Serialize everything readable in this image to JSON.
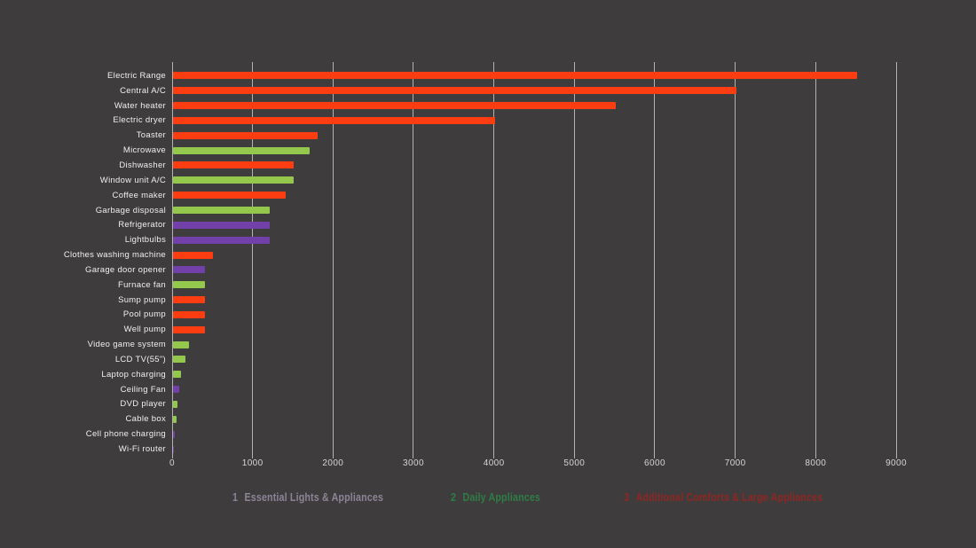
{
  "colors": {
    "background": "#3e3c3d",
    "gridline": "#c9c6c5",
    "tick_text": "#d7d4d3",
    "label_text": "#f1eeed"
  },
  "chart_data": {
    "type": "bar",
    "orientation": "horizontal",
    "title": "",
    "xlabel": "",
    "ylabel": "",
    "unit": "watts",
    "xlim": [
      0,
      9000
    ],
    "grid": true,
    "x_ticks": [
      0,
      1000,
      2000,
      3000,
      4000,
      5000,
      6000,
      7000,
      8000,
      9000
    ],
    "legend_position": "bottom",
    "legend": [
      {
        "key": "essential",
        "num": "1",
        "label": "Essential Lights & Appliances",
        "text_color": "#8c8496",
        "bar_color": "#7140a8"
      },
      {
        "key": "daily",
        "num": "2",
        "label": "Daily Appliances",
        "text_color": "#2e7d45",
        "bar_color": "#94c84d"
      },
      {
        "key": "additional",
        "num": "3",
        "label": "Additional Comforts & Large Appliances",
        "text_color": "#8e2723",
        "bar_color": "#fb3d11"
      }
    ],
    "bars": [
      {
        "label": "Electric Range",
        "value": 8500,
        "category": "additional"
      },
      {
        "label": "Central A/C",
        "value": 7000,
        "category": "additional"
      },
      {
        "label": "Water heater",
        "value": 5500,
        "category": "additional"
      },
      {
        "label": "Electric dryer",
        "value": 4000,
        "category": "additional"
      },
      {
        "label": "Toaster",
        "value": 1800,
        "category": "additional"
      },
      {
        "label": "Microwave",
        "value": 1700,
        "category": "daily"
      },
      {
        "label": "Dishwasher",
        "value": 1500,
        "category": "additional"
      },
      {
        "label": "Window unit A/C",
        "value": 1500,
        "category": "daily"
      },
      {
        "label": "Coffee maker",
        "value": 1400,
        "category": "additional"
      },
      {
        "label": "Garbage disposal",
        "value": 1200,
        "category": "daily"
      },
      {
        "label": "Refrigerator",
        "value": 1200,
        "category": "essential"
      },
      {
        "label": "Lightbulbs",
        "value": 1200,
        "category": "essential"
      },
      {
        "label": "Clothes washing machine",
        "value": 500,
        "category": "additional"
      },
      {
        "label": "Garage door opener",
        "value": 400,
        "category": "essential"
      },
      {
        "label": "Furnace fan",
        "value": 400,
        "category": "daily"
      },
      {
        "label": "Sump pump",
        "value": 400,
        "category": "additional"
      },
      {
        "label": "Pool pump",
        "value": 400,
        "category": "additional"
      },
      {
        "label": "Well pump",
        "value": 400,
        "category": "additional"
      },
      {
        "label": "Video game system",
        "value": 200,
        "category": "daily"
      },
      {
        "label": "LCD TV(55\")",
        "value": 150,
        "category": "daily"
      },
      {
        "label": "Laptop charging",
        "value": 100,
        "category": "daily"
      },
      {
        "label": "Ceiling Fan",
        "value": 75,
        "category": "essential"
      },
      {
        "label": "DVD player",
        "value": 60,
        "category": "daily"
      },
      {
        "label": "Cable box",
        "value": 40,
        "category": "daily"
      },
      {
        "label": "Cell phone charging",
        "value": 20,
        "category": "essential"
      },
      {
        "label": "Wi-Fi router",
        "value": 10,
        "category": "essential"
      }
    ]
  }
}
